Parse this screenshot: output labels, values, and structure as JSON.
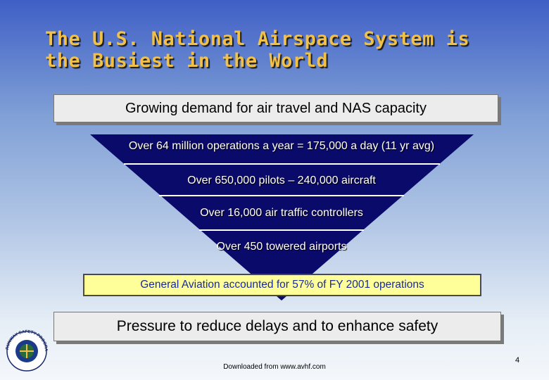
{
  "title": {
    "line1": "The U.S. National Airspace System is",
    "line2": "the Busiest in the World"
  },
  "top_box": "Growing demand for air travel and NAS capacity",
  "funnel": {
    "tiers": [
      "Over 64 million operations a year = 175,000 a day  (11 yr avg)",
      "Over 650,000 pilots – 240,000 aircraft",
      "Over 16,000 air traffic controllers",
      "Over 450 towered airports"
    ],
    "colors": {
      "fill": "#0a0a6a",
      "divider": "#ffffff"
    }
  },
  "ga_callout": "General Aviation accounted for 57% of FY 2001 operations",
  "bottom_box": "Pressure to reduce delays and to enhance safety",
  "footer": {
    "source": "Downloaded from www.avhf.com",
    "page_number": "4"
  },
  "seal": {
    "icon": "runway-safety-program-seal",
    "text": "RUNWAY SAFETY PROGRAM"
  },
  "colors": {
    "title": "#f0c048",
    "callout_bg": "#ffff99",
    "callout_text": "#1a2a9a"
  }
}
